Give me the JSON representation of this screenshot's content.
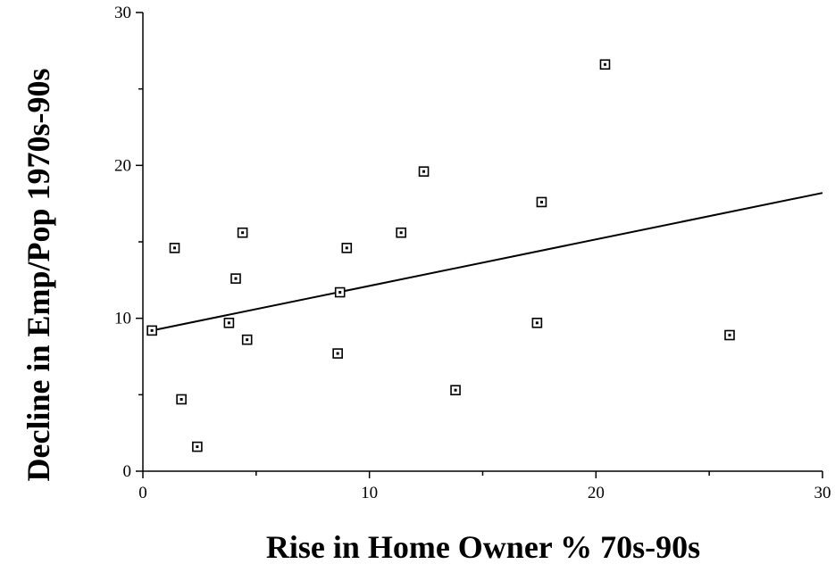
{
  "chart_data": {
    "type": "scatter",
    "title": "",
    "xlabel": "Rise in Home Owner % 70s-90s",
    "ylabel": "Decline in Emp/Pop 1970s-90s",
    "xlim": [
      0,
      30
    ],
    "ylim": [
      0,
      30
    ],
    "x_ticks": [
      "0",
      "10",
      "20",
      "30"
    ],
    "y_ticks": [
      "0",
      "10",
      "20",
      "30"
    ],
    "grid": false,
    "legend": "none",
    "marker": "hollow-square",
    "points": [
      {
        "x": 0.4,
        "y": 9.2
      },
      {
        "x": 1.4,
        "y": 14.6
      },
      {
        "x": 1.7,
        "y": 4.7
      },
      {
        "x": 2.4,
        "y": 1.6
      },
      {
        "x": 3.8,
        "y": 9.7
      },
      {
        "x": 4.1,
        "y": 12.6
      },
      {
        "x": 4.4,
        "y": 15.6
      },
      {
        "x": 4.6,
        "y": 8.6
      },
      {
        "x": 8.6,
        "y": 7.7
      },
      {
        "x": 8.7,
        "y": 11.7
      },
      {
        "x": 9.0,
        "y": 14.6
      },
      {
        "x": 11.4,
        "y": 15.6
      },
      {
        "x": 12.4,
        "y": 19.6
      },
      {
        "x": 13.8,
        "y": 5.3
      },
      {
        "x": 17.4,
        "y": 9.7
      },
      {
        "x": 17.6,
        "y": 17.6
      },
      {
        "x": 20.4,
        "y": 26.6
      },
      {
        "x": 25.9,
        "y": 8.9
      }
    ],
    "trendline": {
      "x": [
        0.4,
        30
      ],
      "y": [
        9.2,
        18.2
      ]
    }
  }
}
